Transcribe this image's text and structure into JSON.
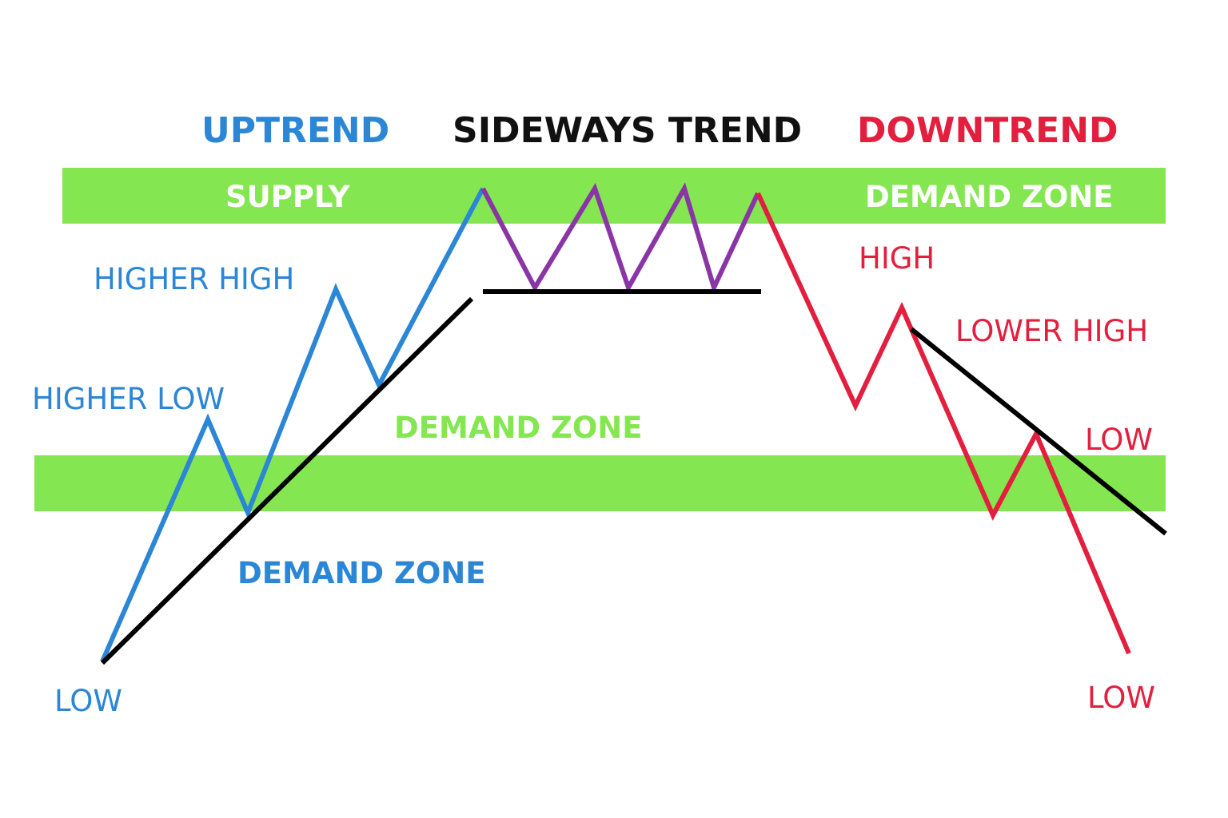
{
  "headings": {
    "uptrend": "UPTREND",
    "sideways": "SIDEWAYS TREND",
    "downtrend": "DOWNTREND"
  },
  "zone_labels": {
    "supply": "SUPPLY",
    "demand_top_right": "DEMAND ZONE",
    "demand_middle": "DEMAND ZONE",
    "demand_bottom": "DEMAND ZONE"
  },
  "uptrend_labels": {
    "higher_high": "HIGHER HIGH",
    "higher_low": "HIGHER LOW",
    "low": "LOW"
  },
  "downtrend_labels": {
    "high": "HIGH",
    "lower_high": "LOWER HIGH",
    "low_mid": "LOW",
    "low_bottom": "LOW"
  },
  "colors": {
    "uptrend": "#2b86d6",
    "sideways_heading": "#111111",
    "sideways_line": "#8a35a6",
    "downtrend": "#e21f3e",
    "zone": "#84e650",
    "zone_text_on_band": "#ffffff",
    "zone_text": "#84e650",
    "trendline": "#000000"
  }
}
